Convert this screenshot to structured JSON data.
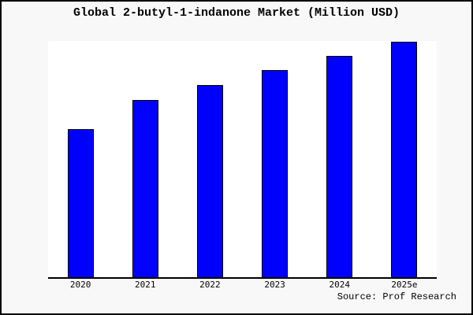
{
  "header": {
    "title": "Global 2-butyl-1-indanone Market (Million USD)"
  },
  "footer": {
    "source": "Source: Prof Research"
  },
  "colors": {
    "page_background": "#f8f8f8",
    "plot_background": "#ffffff",
    "bar_fill": "#0000ff",
    "bar_border": "#000000",
    "axis_line": "#000000",
    "text": "#000000",
    "canvas_border": "#000000"
  },
  "chart_data": {
    "type": "bar",
    "title": "Global 2-butyl-1-indanone Market (Million USD)",
    "categories": [
      "2020",
      "2021",
      "2022",
      "2023",
      "2024",
      "2025e"
    ],
    "values": [
      188,
      225,
      244,
      263,
      281,
      299
    ],
    "value_note": "relative bar heights in px; chart shows no y-axis scale or value labels",
    "xlabel": "",
    "ylabel": "",
    "ylim": [
      0,
      300
    ],
    "grid": false,
    "legend": null,
    "annotation": "Source: Prof Research"
  }
}
